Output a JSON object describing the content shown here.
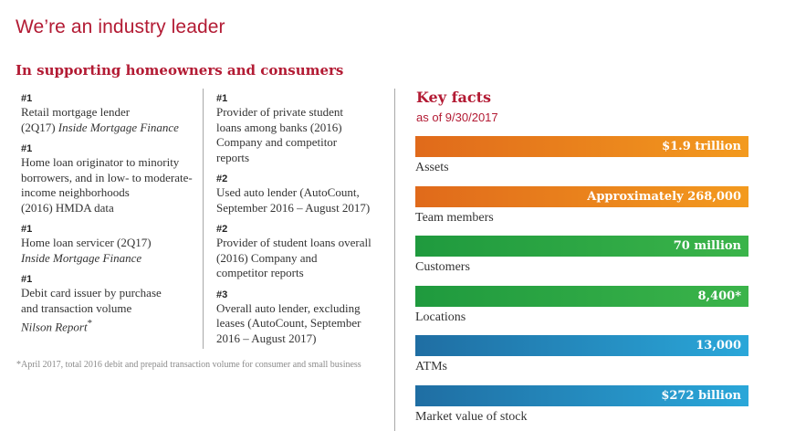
{
  "title": "We’re an industry leader",
  "subtitle": "In supporting homeowners and consumers",
  "rankings_col1": [
    {
      "rank": "#1",
      "lines": [
        "Retail mortgage lender",
        "(2Q17) <i>Inside Mortgage Finance</i>"
      ]
    },
    {
      "rank": "#1",
      "lines": [
        "Home loan originator to minority",
        "borrowers, and in low- to moderate-",
        "income neighborhoods",
        "(2016) HMDA data"
      ]
    },
    {
      "rank": "#1",
      "lines": [
        "Home loan servicer (2Q17)",
        "<i>Inside Mortgage Finance</i>"
      ]
    },
    {
      "rank": "#1",
      "lines": [
        "Debit card issuer by purchase",
        "and transaction volume",
        "<i>Nilson Report</i><sup>*</sup>"
      ]
    }
  ],
  "rankings_col2": [
    {
      "rank": "#1",
      "lines": [
        "Provider of private student",
        "loans among banks (2016)",
        "Company and competitor",
        "reports"
      ]
    },
    {
      "rank": "#2",
      "lines": [
        "Used auto lender (AutoCount,",
        "September 2016 – August 2017)"
      ]
    },
    {
      "rank": "#2",
      "lines": [
        "Provider of student loans overall",
        "(2016) Company and",
        "competitor reports"
      ]
    },
    {
      "rank": "#3",
      "lines": [
        "Overall auto lender, excluding",
        "leases (AutoCount, September",
        "2016 – August 2017)"
      ]
    }
  ],
  "footnote": "*April 2017, total 2016 debit and prepaid transaction volume for consumer and small business",
  "key_facts": {
    "title": "Key facts",
    "subtitle": "as of 9/30/2017",
    "items": [
      {
        "value": "$1.9 trillion",
        "label": "Assets",
        "color_start": "#e06a1b",
        "color_end": "#f39a1e"
      },
      {
        "value": "Approximately 268,000",
        "label": "Team members",
        "color_start": "#e06a1b",
        "color_end": "#f39a1e"
      },
      {
        "value": "70 million",
        "label": "Customers",
        "color_start": "#1f9a3e",
        "color_end": "#3bb44a"
      },
      {
        "value": "8,400*",
        "label": "Locations",
        "color_start": "#1f9a3e",
        "color_end": "#3bb44a"
      },
      {
        "value": "13,000",
        "label": "ATMs",
        "color_start": "#1f6ea3",
        "color_end": "#2aa7d9"
      },
      {
        "value": "$272 billion",
        "label": "Market value of stock",
        "color_start": "#1f6ea3",
        "color_end": "#2aa7d9"
      }
    ]
  }
}
